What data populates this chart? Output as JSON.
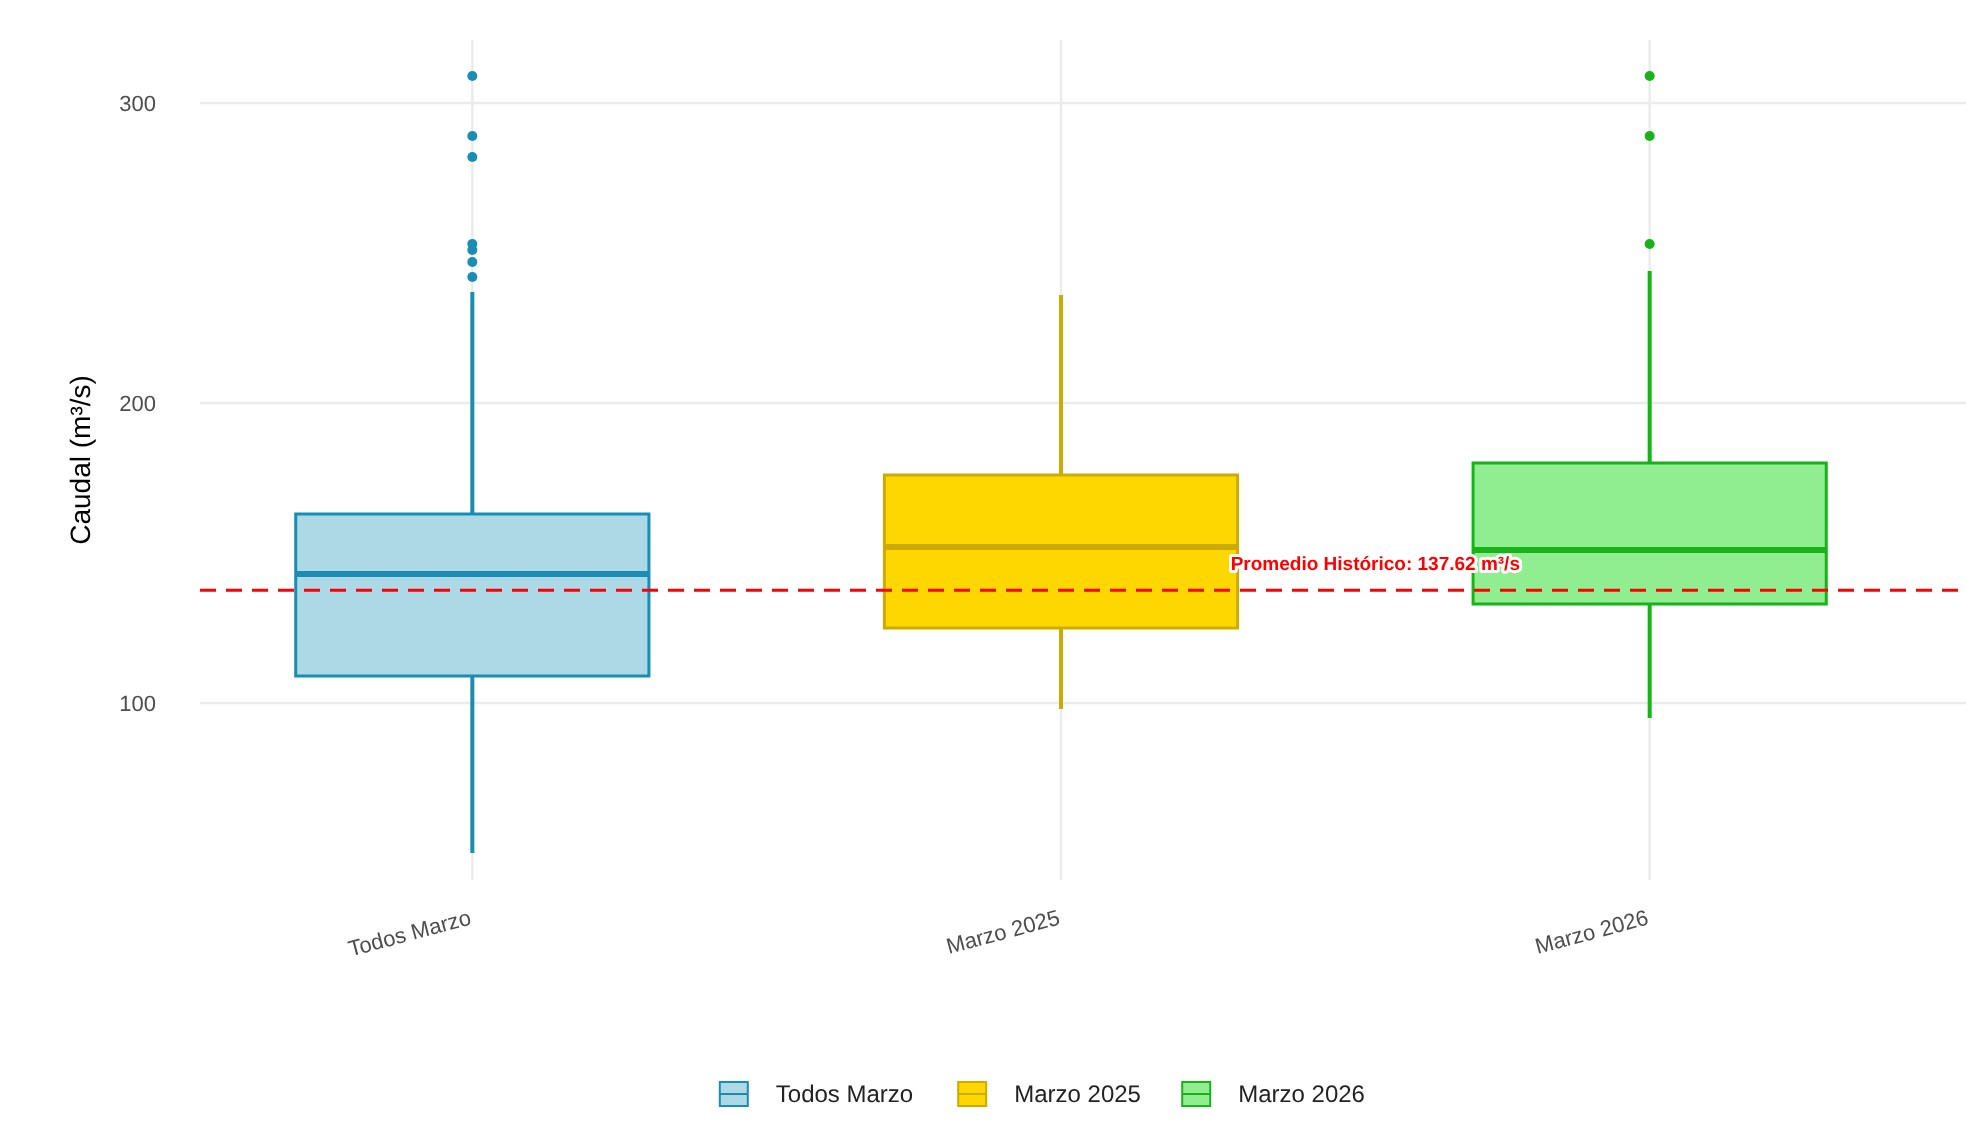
{
  "chart_data": {
    "type": "box",
    "ylabel": "Caudal (m³/s)",
    "categories": [
      "Todos Marzo",
      "Marzo 2025",
      "Marzo 2026"
    ],
    "colors": [
      "#add8e6",
      "#ffd700",
      "#90ee90"
    ],
    "boxes": [
      {
        "low": 50,
        "q1": 109,
        "median": 143,
        "q3": 163,
        "high": 237,
        "outliers": [
          309,
          289,
          282,
          253,
          251,
          247,
          242
        ]
      },
      {
        "low": 98,
        "q1": 125,
        "median": 152,
        "q3": 176,
        "high": 236
      },
      {
        "low": 95,
        "q1": 133,
        "median": 151,
        "q3": 180,
        "high": 244,
        "outliers": [
          309,
          289,
          253
        ]
      }
    ],
    "ylim": [
      41,
      321
    ],
    "yticks": [
      100,
      200,
      300
    ],
    "ref_lines": [
      {
        "axis": "y",
        "value": 137.62,
        "label": "Promedio Histórico: 137.62 m³/s",
        "color": "#ff0000",
        "line_style": "dashed"
      }
    ],
    "grid": true,
    "legend": "bottom"
  }
}
